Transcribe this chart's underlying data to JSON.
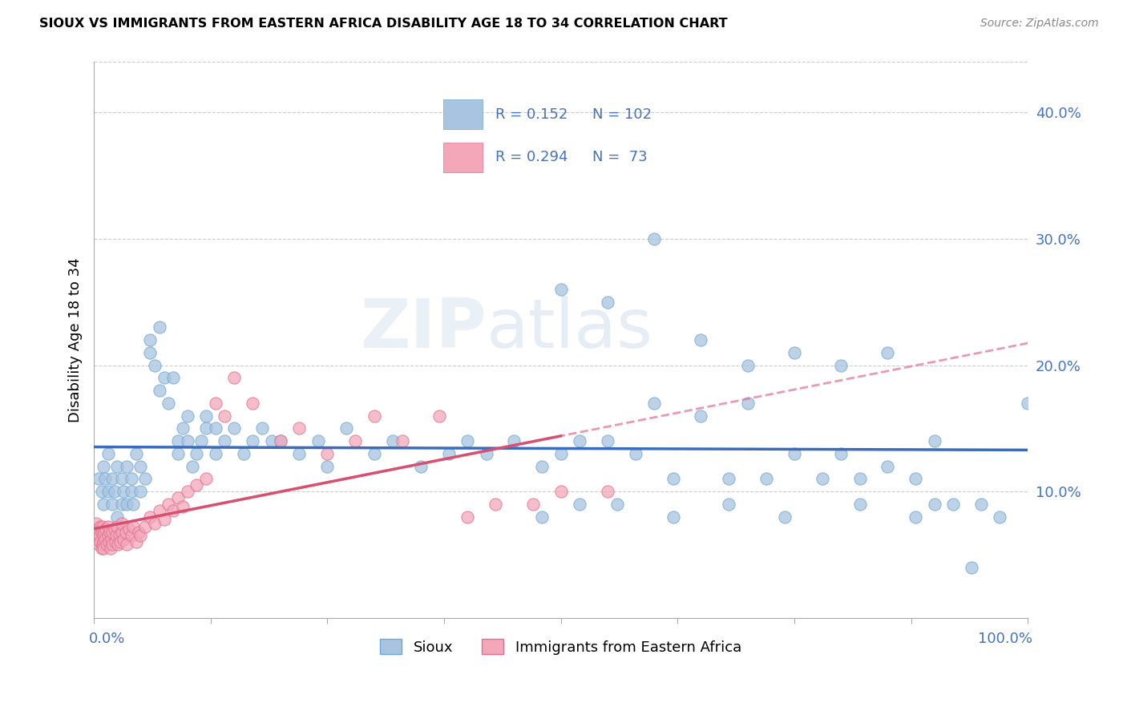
{
  "title": "SIOUX VS IMMIGRANTS FROM EASTERN AFRICA DISABILITY AGE 18 TO 34 CORRELATION CHART",
  "source": "Source: ZipAtlas.com",
  "ylabel": "Disability Age 18 to 34",
  "ytick_labels": [
    "10.0%",
    "20.0%",
    "30.0%",
    "40.0%"
  ],
  "ytick_vals": [
    0.1,
    0.2,
    0.3,
    0.4
  ],
  "xlim": [
    0.0,
    1.0
  ],
  "ylim": [
    0.0,
    0.44
  ],
  "legend_label1": "Sioux",
  "legend_label2": "Immigrants from Eastern Africa",
  "R1": 0.152,
  "N1": 102,
  "R2": 0.294,
  "N2": 73,
  "color_blue": "#a8c4e0",
  "color_pink": "#f4a7b9",
  "color_blue_edge": "#6fa8d4",
  "color_pink_edge": "#e07090",
  "watermark": "ZIPatlas",
  "sioux_x": [
    0.005,
    0.008,
    0.01,
    0.01,
    0.012,
    0.015,
    0.015,
    0.02,
    0.02,
    0.022,
    0.025,
    0.025,
    0.03,
    0.03,
    0.032,
    0.035,
    0.035,
    0.04,
    0.04,
    0.042,
    0.045,
    0.05,
    0.05,
    0.055,
    0.06,
    0.06,
    0.065,
    0.07,
    0.07,
    0.075,
    0.08,
    0.085,
    0.09,
    0.09,
    0.095,
    0.1,
    0.1,
    0.105,
    0.11,
    0.115,
    0.12,
    0.12,
    0.13,
    0.13,
    0.14,
    0.15,
    0.16,
    0.17,
    0.18,
    0.19,
    0.2,
    0.22,
    0.24,
    0.25,
    0.27,
    0.3,
    0.32,
    0.35,
    0.38,
    0.4,
    0.42,
    0.45,
    0.48,
    0.5,
    0.52,
    0.55,
    0.58,
    0.6,
    0.62,
    0.65,
    0.68,
    0.7,
    0.72,
    0.75,
    0.78,
    0.8,
    0.82,
    0.85,
    0.88,
    0.9,
    0.92,
    0.95,
    0.97,
    1.0,
    0.5,
    0.55,
    0.6,
    0.65,
    0.7,
    0.75,
    0.8,
    0.85,
    0.9,
    0.48,
    0.52,
    0.56,
    0.62,
    0.68,
    0.74,
    0.82,
    0.88,
    0.94
  ],
  "sioux_y": [
    0.11,
    0.1,
    0.09,
    0.12,
    0.11,
    0.1,
    0.13,
    0.09,
    0.11,
    0.1,
    0.12,
    0.08,
    0.09,
    0.11,
    0.1,
    0.09,
    0.12,
    0.1,
    0.11,
    0.09,
    0.13,
    0.1,
    0.12,
    0.11,
    0.22,
    0.21,
    0.2,
    0.18,
    0.23,
    0.19,
    0.17,
    0.19,
    0.13,
    0.14,
    0.15,
    0.14,
    0.16,
    0.12,
    0.13,
    0.14,
    0.15,
    0.16,
    0.13,
    0.15,
    0.14,
    0.15,
    0.13,
    0.14,
    0.15,
    0.14,
    0.14,
    0.13,
    0.14,
    0.12,
    0.15,
    0.13,
    0.14,
    0.12,
    0.13,
    0.14,
    0.13,
    0.14,
    0.12,
    0.13,
    0.14,
    0.14,
    0.13,
    0.17,
    0.11,
    0.16,
    0.11,
    0.17,
    0.11,
    0.13,
    0.11,
    0.13,
    0.11,
    0.12,
    0.11,
    0.09,
    0.09,
    0.09,
    0.08,
    0.17,
    0.26,
    0.25,
    0.3,
    0.22,
    0.2,
    0.21,
    0.2,
    0.21,
    0.14,
    0.08,
    0.09,
    0.09,
    0.08,
    0.09,
    0.08,
    0.09,
    0.08,
    0.04
  ],
  "immig_x": [
    0.002,
    0.003,
    0.004,
    0.005,
    0.005,
    0.006,
    0.007,
    0.007,
    0.008,
    0.008,
    0.009,
    0.009,
    0.01,
    0.01,
    0.01,
    0.011,
    0.012,
    0.013,
    0.014,
    0.015,
    0.015,
    0.016,
    0.017,
    0.018,
    0.019,
    0.02,
    0.02,
    0.022,
    0.023,
    0.024,
    0.025,
    0.026,
    0.027,
    0.028,
    0.03,
    0.03,
    0.032,
    0.034,
    0.035,
    0.038,
    0.04,
    0.042,
    0.045,
    0.048,
    0.05,
    0.055,
    0.06,
    0.065,
    0.07,
    0.075,
    0.08,
    0.085,
    0.09,
    0.095,
    0.1,
    0.11,
    0.12,
    0.13,
    0.14,
    0.15,
    0.17,
    0.2,
    0.22,
    0.25,
    0.28,
    0.3,
    0.33,
    0.37,
    0.4,
    0.43,
    0.47,
    0.5,
    0.55
  ],
  "immig_y": [
    0.075,
    0.068,
    0.062,
    0.07,
    0.058,
    0.065,
    0.06,
    0.072,
    0.055,
    0.068,
    0.058,
    0.072,
    0.06,
    0.065,
    0.055,
    0.068,
    0.062,
    0.07,
    0.058,
    0.065,
    0.072,
    0.06,
    0.068,
    0.055,
    0.062,
    0.068,
    0.058,
    0.07,
    0.06,
    0.065,
    0.072,
    0.058,
    0.065,
    0.06,
    0.068,
    0.075,
    0.062,
    0.068,
    0.058,
    0.07,
    0.065,
    0.072,
    0.06,
    0.068,
    0.065,
    0.072,
    0.08,
    0.075,
    0.085,
    0.078,
    0.09,
    0.085,
    0.095,
    0.088,
    0.1,
    0.105,
    0.11,
    0.17,
    0.16,
    0.19,
    0.17,
    0.14,
    0.15,
    0.13,
    0.14,
    0.16,
    0.14,
    0.16,
    0.08,
    0.09,
    0.09,
    0.1,
    0.1
  ]
}
